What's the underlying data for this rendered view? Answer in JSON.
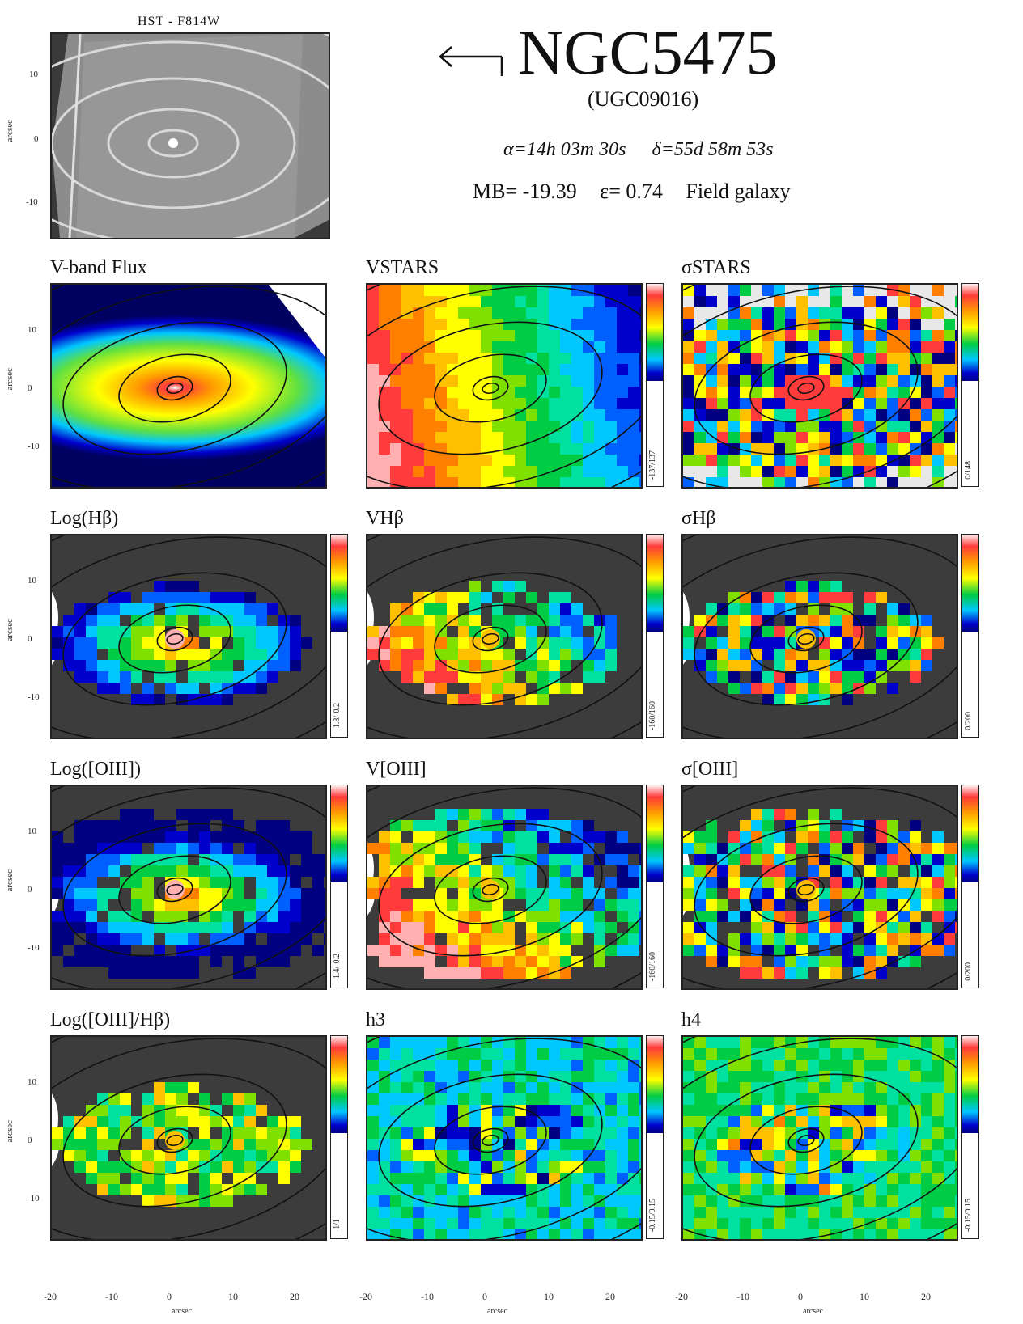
{
  "hst_panel": {
    "title": "HST - F814W",
    "y_label": "arcsec",
    "y_ticks": [
      "10",
      "0",
      "-10"
    ]
  },
  "header": {
    "galaxy_name": "NGC5475",
    "alt_name": "(UGC09016)",
    "ra": "α=14h 03m 30s",
    "dec": "δ=55d 58m 53s",
    "mag": "MB= -19.39",
    "ellipticity": "ε= 0.74",
    "environment": "Field galaxy"
  },
  "axes": {
    "y_label": "arcsec",
    "x_label": "arcsec",
    "y_ticks": [
      "10",
      "0",
      "-10"
    ],
    "x_ticks": [
      "-20",
      "-10",
      "0",
      "10",
      "20"
    ]
  },
  "panels": [
    {
      "title": "V-band Flux",
      "range": "",
      "kind": "flux"
    },
    {
      "title": "VSTARS",
      "range": "-137/137",
      "kind": "velocity"
    },
    {
      "title": "σSTARS",
      "range": "0/148",
      "kind": "dispersion"
    },
    {
      "title": "Log(Hβ)",
      "range": "-1.8/-0.2",
      "kind": "flux_em"
    },
    {
      "title": "VHβ",
      "range": "-160/160",
      "kind": "velocity_em"
    },
    {
      "title": "σHβ",
      "range": "0/200",
      "kind": "dispersion_em"
    },
    {
      "title": "Log([OIII])",
      "range": "-1.4/-0.2",
      "kind": "oiii"
    },
    {
      "title": "V[OIII]",
      "range": "-160/160",
      "kind": "velocity_oiii"
    },
    {
      "title": "σ[OIII]",
      "range": "0/200",
      "kind": "dispersion_oiii"
    },
    {
      "title": "Log([OIII]/Hβ)",
      "range": "-1/1",
      "kind": "ratio"
    },
    {
      "title": "h3",
      "range": "-0.15/0.15",
      "kind": "h3"
    },
    {
      "title": "h4",
      "range": "-0.15/0.15",
      "kind": "h4"
    }
  ]
}
